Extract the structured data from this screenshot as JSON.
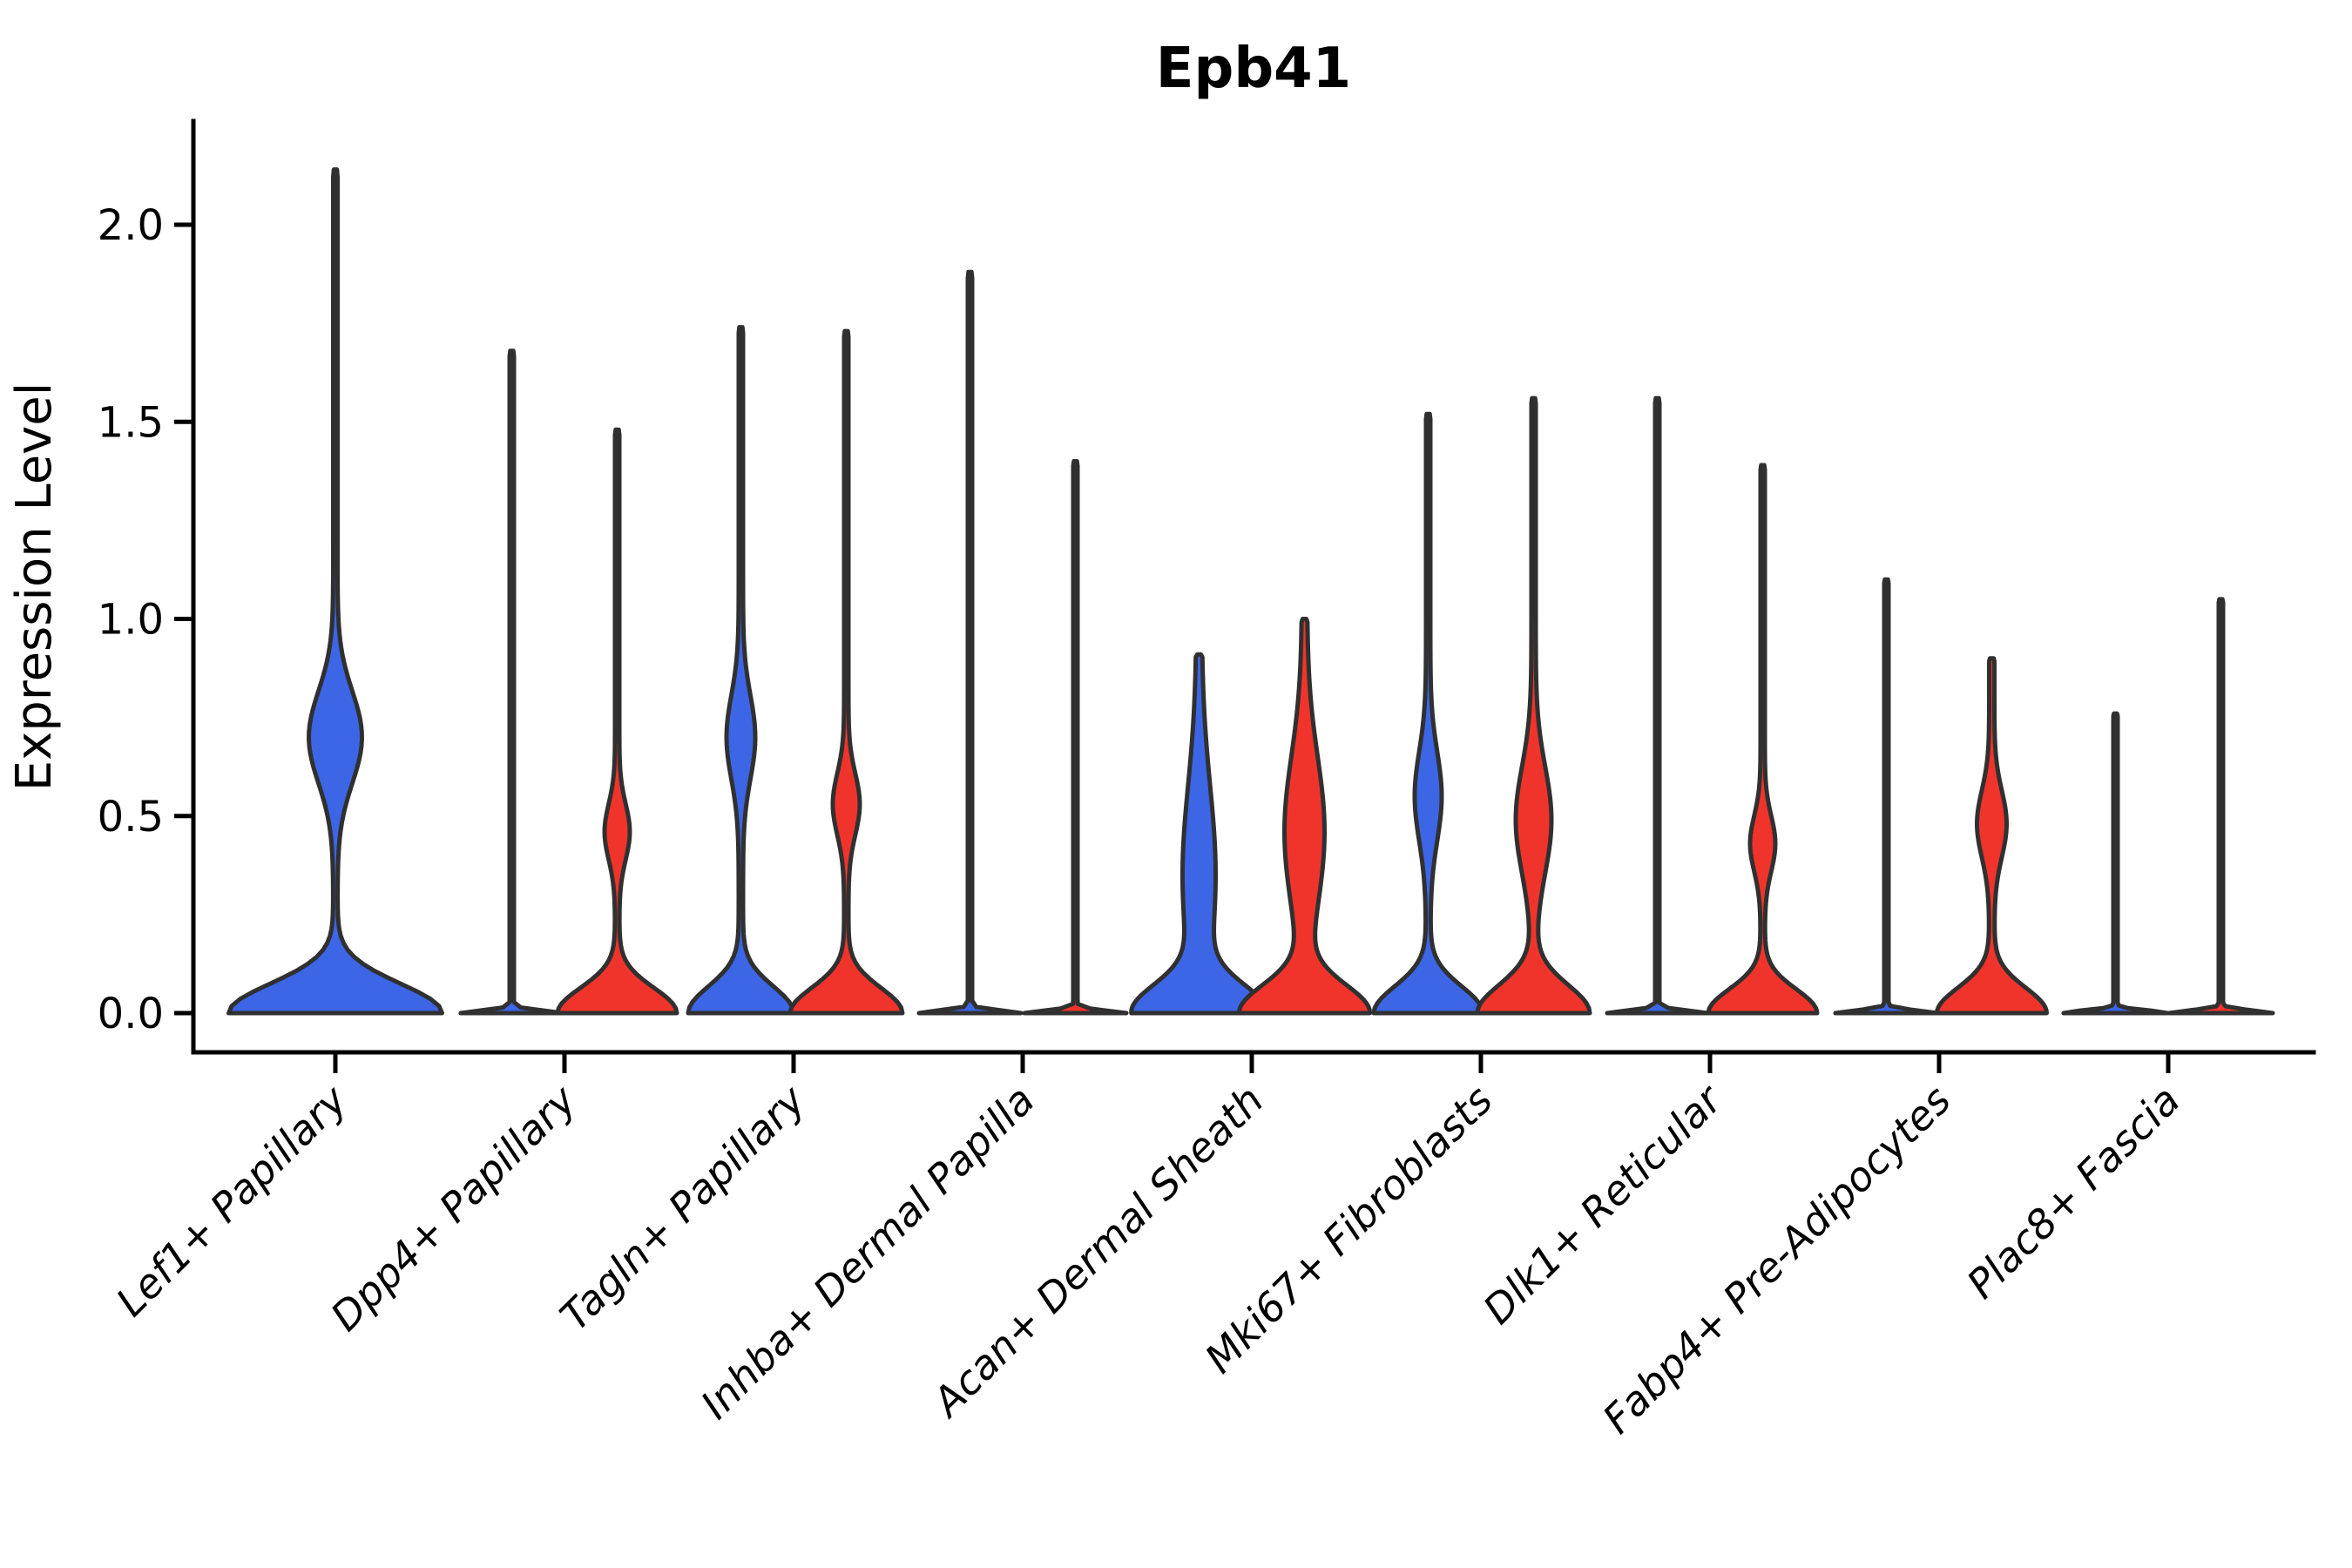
{
  "page": {
    "background": "#ffffff"
  },
  "chart_data": {
    "type": "violin",
    "title": "Epb41",
    "ylabel": "Expression Level",
    "xlabel": "",
    "ylim": [
      -0.1,
      2.26
    ],
    "yticks": [
      0.0,
      0.5,
      1.0,
      1.5,
      2.0
    ],
    "ytick_labels": [
      "0.0",
      "0.5",
      "1.0",
      "1.5",
      "2.0"
    ],
    "grid": false,
    "legend_position": "none",
    "outline_color": "#303030",
    "series": [
      {
        "key": "blue",
        "color": "#3c66e6"
      },
      {
        "key": "red",
        "color": "#f1342b"
      }
    ],
    "categories": [
      "Lef1+ Papillary",
      "Dpp4+ Papillary",
      "Tagln+ Papillary",
      "Inhba+ Dermal Papilla",
      "Acan+ Dermal Sheath",
      "Mki67+ Fibroblasts",
      "Dlk1+ Reticular",
      "Fabp4+ Pre-Adipocytes",
      "Plac8+ Fascia"
    ],
    "groups": [
      {
        "category": "Lef1+ Papillary",
        "violins": [
          {
            "series": "blue",
            "dodge": 0,
            "max": 2.14,
            "mode_low": 0.0,
            "mode_high": 0.7,
            "collapsed": false,
            "width_scale": 2,
            "density": {
              "base_hw": 120,
              "base_sigma": 0.105,
              "bulge_hw": 28,
              "bulge_c": 0.7,
              "bulge_sigma": 0.165,
              "tip_hw": 2.5
            }
          }
        ]
      },
      {
        "category": "Dpp4+ Papillary",
        "violins": [
          {
            "series": "blue",
            "dodge": -1,
            "max": 1.68,
            "mode_low": 0.0,
            "mode_high": null,
            "collapsed": true,
            "width_scale": 1,
            "density": {
              "base_hw": 56,
              "base_sigma": 0.01,
              "tip_hw": 2.5
            }
          },
          {
            "series": "red",
            "dodge": 1,
            "max": 1.48,
            "mode_low": 0.0,
            "mode_high": 0.46,
            "collapsed": false,
            "width_scale": 1,
            "density": {
              "base_hw": 66,
              "base_sigma": 0.09,
              "bulge_hw": 12,
              "bulge_c": 0.46,
              "bulge_sigma": 0.1,
              "tip_hw": 2.5
            }
          }
        ]
      },
      {
        "category": "Tagln+ Papillary",
        "violins": [
          {
            "series": "blue",
            "dodge": -1,
            "max": 1.74,
            "mode_low": 0.0,
            "mode_high": 0.7,
            "collapsed": false,
            "width_scale": 1,
            "density": {
              "base_hw": 58,
              "base_sigma": 0.095,
              "bulge_hw": 14,
              "bulge_c": 0.7,
              "bulge_sigma": 0.15,
              "tip_hw": 2.5
            }
          },
          {
            "series": "red",
            "dodge": 1,
            "max": 1.73,
            "mode_low": 0.0,
            "mode_high": 0.53,
            "collapsed": false,
            "width_scale": 1,
            "density": {
              "base_hw": 62,
              "base_sigma": 0.09,
              "bulge_hw": 13,
              "bulge_c": 0.53,
              "bulge_sigma": 0.11,
              "tip_hw": 2.5
            }
          }
        ]
      },
      {
        "category": "Inhba+ Dermal Papilla",
        "violins": [
          {
            "series": "blue",
            "dodge": -1,
            "max": 1.88,
            "mode_low": 0.0,
            "mode_high": null,
            "collapsed": true,
            "width_scale": 1,
            "density": {
              "base_hw": 56,
              "base_sigma": 0.01,
              "tip_hw": 2.5
            }
          },
          {
            "series": "red",
            "dodge": 1,
            "max": 1.4,
            "mode_low": 0.0,
            "mode_high": null,
            "collapsed": true,
            "width_scale": 1,
            "density": {
              "base_hw": 56,
              "base_sigma": 0.01,
              "tip_hw": 2.5
            }
          }
        ]
      },
      {
        "category": "Acan+ Dermal Sheath",
        "violins": [
          {
            "series": "blue",
            "dodge": -1,
            "max": 0.91,
            "mode_low": 0.0,
            "mode_high": 0.35,
            "collapsed": false,
            "width_scale": 1,
            "density": {
              "base_hw": 70,
              "base_sigma": 0.1,
              "bulge_hw": 16,
              "bulge_c": 0.35,
              "bulge_sigma": 0.32,
              "tip_hw": 3.0
            }
          },
          {
            "series": "red",
            "dodge": 1,
            "max": 1.0,
            "mode_low": 0.0,
            "mode_high": 0.46,
            "collapsed": false,
            "width_scale": 1,
            "density": {
              "base_hw": 71,
              "base_sigma": 0.1,
              "bulge_hw": 20,
              "bulge_c": 0.46,
              "bulge_sigma": 0.27,
              "tip_hw": 3.0
            }
          }
        ]
      },
      {
        "category": "Mki67+ Fibroblasts",
        "violins": [
          {
            "series": "blue",
            "dodge": -1,
            "max": 1.52,
            "mode_low": 0.0,
            "mode_high": 0.55,
            "collapsed": false,
            "width_scale": 1,
            "density": {
              "base_hw": 60,
              "base_sigma": 0.095,
              "bulge_hw": 13,
              "bulge_c": 0.55,
              "bulge_sigma": 0.16,
              "tip_hw": 2.5
            }
          },
          {
            "series": "red",
            "dodge": 1,
            "max": 1.56,
            "mode_low": 0.0,
            "mode_high": 0.49,
            "collapsed": false,
            "width_scale": 1,
            "density": {
              "base_hw": 62,
              "base_sigma": 0.1,
              "bulge_hw": 18,
              "bulge_c": 0.49,
              "bulge_sigma": 0.19,
              "tip_hw": 2.5
            }
          }
        ]
      },
      {
        "category": "Dlk1+ Reticular",
        "violins": [
          {
            "series": "blue",
            "dodge": -1,
            "max": 1.56,
            "mode_low": 0.0,
            "mode_high": null,
            "collapsed": true,
            "width_scale": 1,
            "density": {
              "base_hw": 55,
              "base_sigma": 0.01,
              "tip_hw": 2.5
            }
          },
          {
            "series": "red",
            "dodge": 1,
            "max": 1.39,
            "mode_low": 0.0,
            "mode_high": 0.43,
            "collapsed": false,
            "width_scale": 1,
            "density": {
              "base_hw": 60,
              "base_sigma": 0.085,
              "bulge_hw": 12,
              "bulge_c": 0.43,
              "bulge_sigma": 0.1,
              "tip_hw": 2.5
            }
          }
        ]
      },
      {
        "category": "Fabp4+ Pre-Adipocytes",
        "violins": [
          {
            "series": "blue",
            "dodge": -1,
            "max": 1.1,
            "mode_low": 0.0,
            "mode_high": null,
            "collapsed": true,
            "width_scale": 1,
            "density": {
              "base_hw": 56,
              "base_sigma": 0.01,
              "tip_hw": 2.5
            }
          },
          {
            "series": "red",
            "dodge": 1,
            "max": 0.9,
            "mode_low": 0.0,
            "mode_high": 0.48,
            "collapsed": false,
            "width_scale": 1,
            "density": {
              "base_hw": 60,
              "base_sigma": 0.09,
              "bulge_hw": 14,
              "bulge_c": 0.48,
              "bulge_sigma": 0.12,
              "tip_hw": 3.0
            }
          }
        ]
      },
      {
        "category": "Plac8+ Fascia",
        "violins": [
          {
            "series": "blue",
            "dodge": -1,
            "max": 0.76,
            "mode_low": 0.0,
            "mode_high": null,
            "collapsed": true,
            "width_scale": 1,
            "density": {
              "base_hw": 57,
              "base_sigma": 0.01,
              "tip_hw": 2.5
            }
          },
          {
            "series": "red",
            "dodge": 1,
            "max": 1.05,
            "mode_low": 0.0,
            "mode_high": null,
            "collapsed": true,
            "width_scale": 1,
            "density": {
              "base_hw": 57,
              "base_sigma": 0.01,
              "tip_hw": 2.5
            }
          }
        ]
      }
    ]
  }
}
